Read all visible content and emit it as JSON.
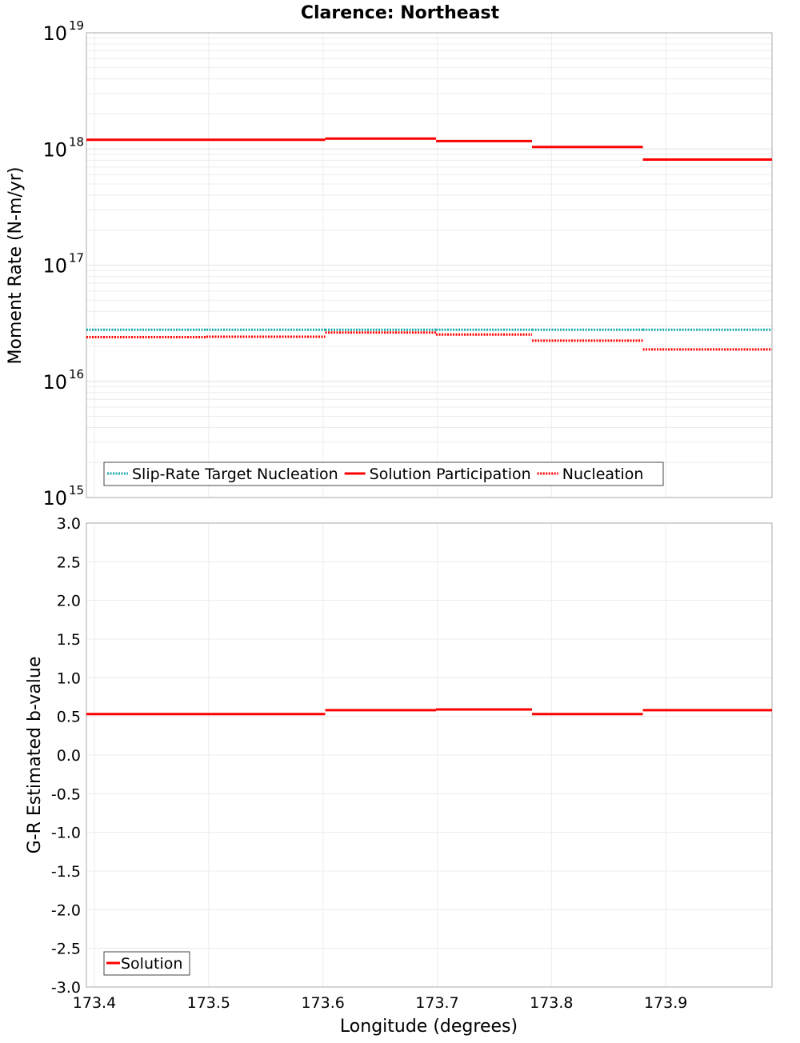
{
  "chart_data": [
    {
      "type": "line",
      "title": "Clarence: Northeast",
      "ylabel": "Moment Rate (N-m/yr)",
      "yscale": "log",
      "ylim": [
        1000000000000000.0,
        1e+19
      ],
      "xlim": [
        173.393,
        173.993
      ],
      "ytick_exponents": [
        "15",
        "16",
        "17",
        "18",
        "19"
      ],
      "ytick_base": "10",
      "grid": true,
      "legend_position": "bottom-left",
      "segments_x": [
        173.393,
        173.498,
        173.602,
        173.699,
        173.783,
        173.88,
        173.993
      ],
      "series": [
        {
          "name": "Slip-Rate Target Nucleation",
          "color": "#1aaaa8",
          "style": "dotted",
          "values": [
            2.78e+16,
            2.78e+16,
            2.78e+16,
            2.78e+16,
            2.78e+16,
            2.78e+16
          ]
        },
        {
          "name": "Solution Participation",
          "color": "#ff0000",
          "style": "solid",
          "values": [
            1.2e+18,
            1.2e+18,
            1.23e+18,
            1.17e+18,
            1.04e+18,
            8.1e+17
          ]
        },
        {
          "name": "Nucleation",
          "color": "#ff0000",
          "style": "dotted",
          "values": [
            2.4e+16,
            2.42e+16,
            2.63e+16,
            2.53e+16,
            2.24e+16,
            1.88e+16
          ]
        }
      ]
    },
    {
      "type": "line",
      "xlabel": "Longitude (degrees)",
      "ylabel": "G-R Estimated b-value",
      "ylim": [
        -3.0,
        3.0
      ],
      "xlim": [
        173.393,
        173.993
      ],
      "yticks": [
        "3.0",
        "2.5",
        "2.0",
        "1.5",
        "1.0",
        "0.5",
        "0.0",
        "-0.5",
        "-1.0",
        "-1.5",
        "-2.0",
        "-2.5",
        "-3.0"
      ],
      "xticks": [
        "173.4",
        "173.5",
        "173.6",
        "173.7",
        "173.8",
        "173.9"
      ],
      "grid": true,
      "legend_position": "bottom-left",
      "segments_x": [
        173.393,
        173.498,
        173.602,
        173.699,
        173.783,
        173.88,
        173.993
      ],
      "series": [
        {
          "name": "Solution",
          "color": "#ff0000",
          "style": "solid",
          "values": [
            0.53,
            0.53,
            0.58,
            0.59,
            0.53,
            0.58
          ]
        }
      ]
    }
  ]
}
